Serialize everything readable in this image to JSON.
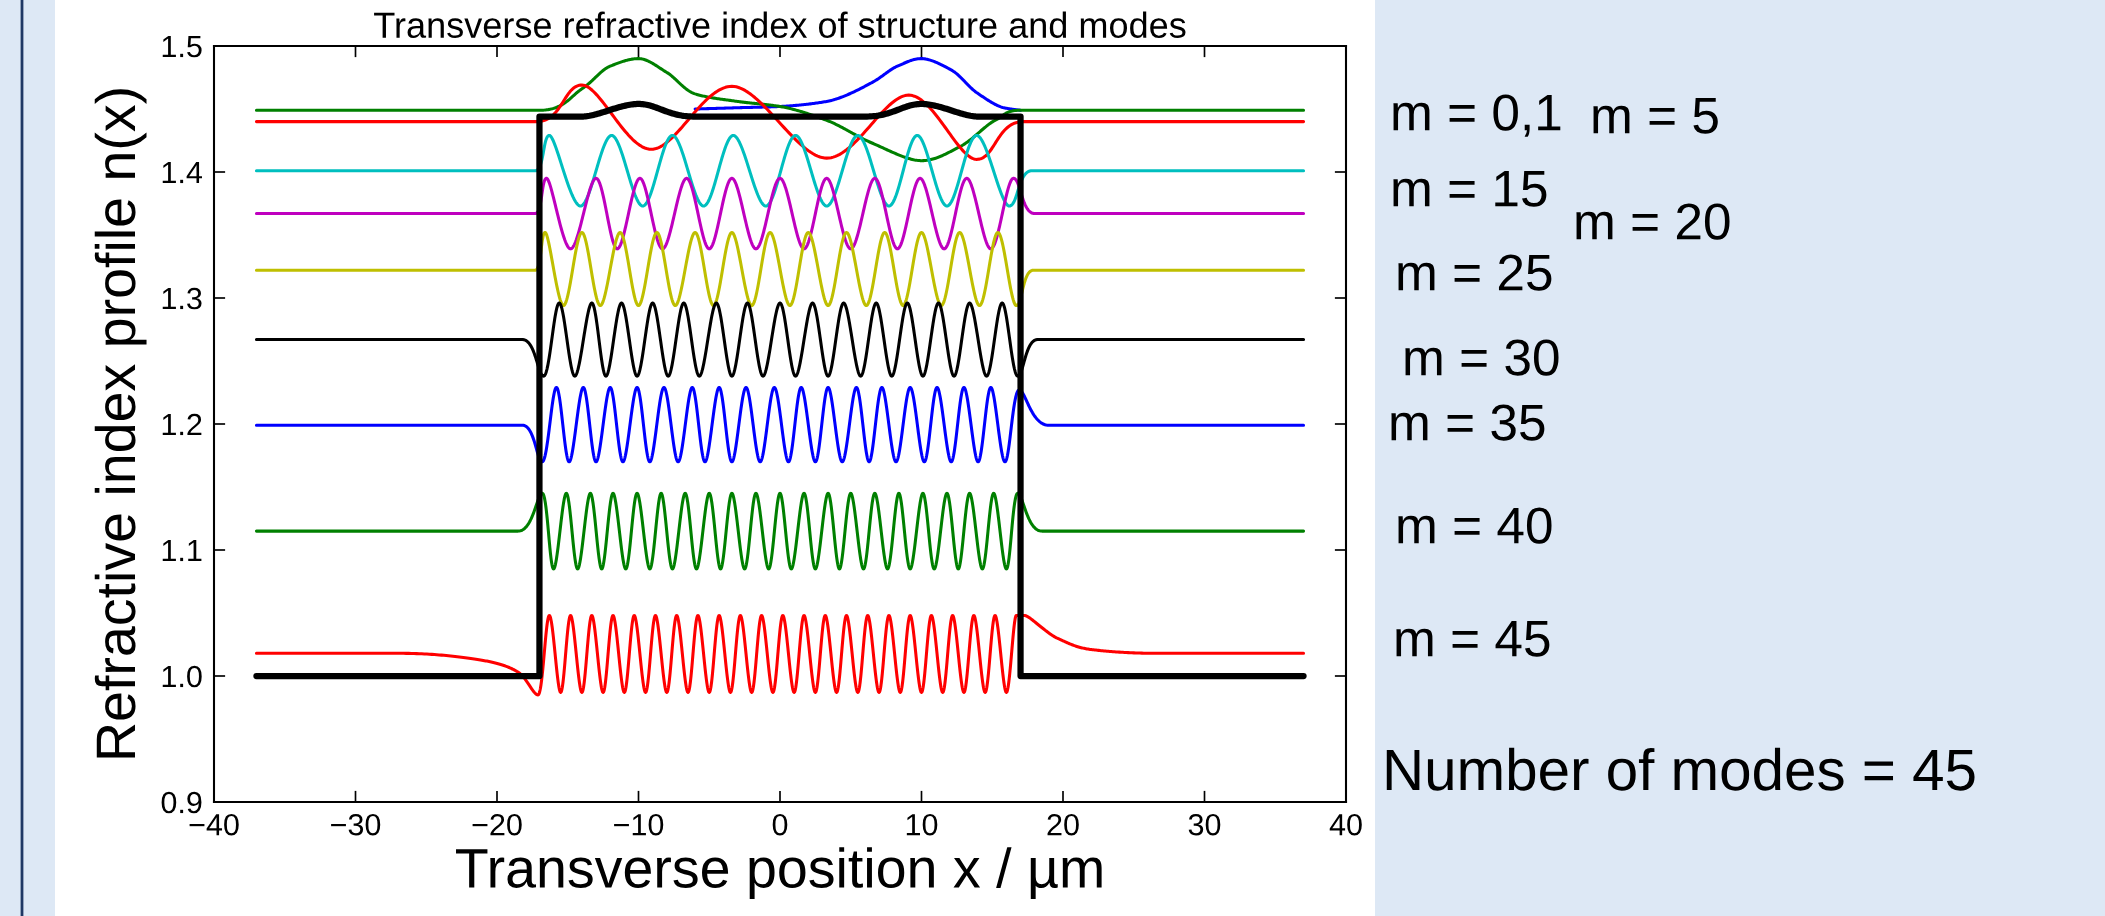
{
  "chart_data": {
    "type": "line",
    "title": "Transverse refractive index of structure and modes",
    "xlabel": "Transverse position x / µm",
    "ylabel": "Refractive index profile n(x)",
    "xlim": [
      -40,
      40
    ],
    "xticks": [
      {
        "value": -40,
        "label": "−40"
      },
      {
        "value": -30,
        "label": "−30"
      },
      {
        "value": -20,
        "label": "−20"
      },
      {
        "value": -10,
        "label": "−10"
      },
      0,
      10,
      20,
      30,
      40
    ],
    "ylim": [
      0.9,
      1.5
    ],
    "yticks": [
      0.9,
      {
        "value": 1.0,
        "label": "1.0"
      },
      1.1,
      1.2,
      1.3,
      1.4,
      1.5
    ],
    "annotations": [
      "m = 0,1",
      "m = 5",
      "m = 15",
      "m = 20",
      "m = 25",
      "m = 30",
      "m = 35",
      "m = 40",
      "m = 45",
      "Number of modes = 45"
    ],
    "series": [
      {
        "color": "#000000",
        "x": [
          -37,
          -17,
          -17,
          -14,
          -10,
          -6,
          6,
          10,
          14,
          17,
          17,
          37
        ],
        "values": [
          1.0,
          1.0,
          1.444,
          1.444,
          1.454,
          1.444,
          1.444,
          1.454,
          1.444,
          1.444,
          1.0,
          1.0
        ]
      },
      {
        "color": "#0000ff",
        "x": [
          -6,
          -3,
          0,
          3.3,
          6.5,
          8.3,
          10,
          12.1,
          13.9,
          15.8,
          17
        ],
        "values": [
          1.45,
          1.451,
          1.452,
          1.456,
          1.471,
          1.484,
          1.49,
          1.481,
          1.463,
          1.451,
          1.449
        ]
      },
      {
        "color": "#008000",
        "x": [
          -37,
          -17,
          -14,
          -12,
          -10,
          -8,
          -6,
          -3,
          0,
          3.3,
          6.5,
          10,
          12.7,
          15.2,
          17,
          37
        ],
        "values": [
          1.449,
          1.449,
          1.466,
          1.484,
          1.49,
          1.479,
          1.462,
          1.456,
          1.452,
          1.441,
          1.423,
          1.409,
          1.42,
          1.441,
          1.449,
          1.449
        ]
      },
      {
        "color": "#ff0000",
        "x": [
          -37,
          -17.2,
          -14,
          -9.1,
          -3.4,
          3.3,
          9.1,
          13.9,
          17.2,
          37
        ],
        "values": [
          1.44,
          1.44,
          1.469,
          1.418,
          1.468,
          1.411,
          1.461,
          1.41,
          1.44,
          1.44
        ]
      },
      {
        "color": "#00bfbf",
        "x": [
          -37,
          -17.3,
          -16.3,
          -14.1,
          -11.9,
          -9.7,
          -7.6,
          -5.4,
          -3.3,
          -1.0,
          1.1,
          3.3,
          5.5,
          7.7,
          9.7,
          11.8,
          13.9,
          16.2,
          17.8,
          37
        ],
        "values": [
          1.401,
          1.401,
          1.429,
          1.373,
          1.429,
          1.373,
          1.429,
          1.373,
          1.429,
          1.373,
          1.429,
          1.373,
          1.429,
          1.373,
          1.429,
          1.373,
          1.429,
          1.373,
          1.401,
          1.401
        ]
      },
      {
        "color": "#bf00bf",
        "x": [
          -37,
          -17.3,
          -16.5,
          -14.8,
          -13.0,
          -11.5,
          -9.9,
          -8.3,
          -6.6,
          -5.0,
          -3.4,
          -1.7,
          0.0,
          1.7,
          3.3,
          5.0,
          6.7,
          8.3,
          9.9,
          11.6,
          13.2,
          14.9,
          16.5,
          18.0,
          37
        ],
        "values": [
          1.367,
          1.367,
          1.395,
          1.339,
          1.395,
          1.339,
          1.395,
          1.339,
          1.395,
          1.339,
          1.395,
          1.339,
          1.395,
          1.339,
          1.395,
          1.339,
          1.395,
          1.339,
          1.395,
          1.339,
          1.395,
          1.339,
          1.395,
          1.367,
          1.367
        ]
      },
      {
        "color": "#bfbf00",
        "x": [
          -37,
          -17.3,
          -16.6,
          -15.3,
          -14.0,
          -12.7,
          -11.3,
          -10.0,
          -8.7,
          -7.4,
          -6.0,
          -4.7,
          -3.4,
          -2.0,
          -0.7,
          0.7,
          2.0,
          3.4,
          4.7,
          6.1,
          7.4,
          8.7,
          10.0,
          11.4,
          12.7,
          14.1,
          15.4,
          16.7,
          17.9,
          37
        ],
        "values": [
          1.322,
          1.322,
          1.352,
          1.294,
          1.352,
          1.294,
          1.352,
          1.294,
          1.352,
          1.294,
          1.352,
          1.294,
          1.352,
          1.294,
          1.352,
          1.294,
          1.352,
          1.294,
          1.352,
          1.294,
          1.352,
          1.294,
          1.352,
          1.294,
          1.352,
          1.294,
          1.352,
          1.294,
          1.322,
          1.322
        ]
      },
      {
        "color": "#000000",
        "x": [
          -37,
          -18.2,
          -16.7,
          -15.6,
          -14.5,
          -13.3,
          -12.3,
          -11.2,
          -10.1,
          -9.0,
          -7.9,
          -6.8,
          -5.7,
          -4.5,
          -3.4,
          -2.3,
          -1.2,
          0.0,
          1.1,
          2.3,
          3.4,
          4.5,
          5.7,
          6.8,
          7.9,
          9.0,
          10.1,
          11.2,
          12.3,
          13.4,
          14.6,
          15.7,
          16.8,
          18.2,
          37
        ],
        "values": [
          1.267,
          1.267,
          1.238,
          1.296,
          1.238,
          1.296,
          1.238,
          1.296,
          1.238,
          1.296,
          1.238,
          1.296,
          1.238,
          1.296,
          1.238,
          1.296,
          1.238,
          1.296,
          1.238,
          1.296,
          1.238,
          1.296,
          1.238,
          1.296,
          1.238,
          1.296,
          1.238,
          1.296,
          1.238,
          1.296,
          1.238,
          1.296,
          1.238,
          1.267,
          1.267
        ]
      },
      {
        "color": "#0000ff",
        "x": [
          -37,
          -18.2,
          -16.8,
          -15.8,
          -14.9,
          -13.9,
          -13.0,
          -12.0,
          -11.1,
          -10.1,
          -9.2,
          -8.2,
          -7.2,
          -6.2,
          -5.3,
          -4.3,
          -3.4,
          -2.4,
          -1.4,
          -0.4,
          0.6,
          1.5,
          2.5,
          3.4,
          4.4,
          5.4,
          6.3,
          7.2,
          8.2,
          9.2,
          10.2,
          11.1,
          12.1,
          13.0,
          14.0,
          14.9,
          15.9,
          16.9,
          19.0,
          37
        ],
        "values": [
          1.199,
          1.199,
          1.17,
          1.229,
          1.17,
          1.229,
          1.17,
          1.229,
          1.17,
          1.229,
          1.17,
          1.229,
          1.17,
          1.229,
          1.17,
          1.229,
          1.17,
          1.229,
          1.17,
          1.229,
          1.17,
          1.229,
          1.17,
          1.229,
          1.17,
          1.229,
          1.17,
          1.229,
          1.17,
          1.229,
          1.17,
          1.229,
          1.17,
          1.229,
          1.17,
          1.229,
          1.17,
          1.227,
          1.199,
          1.199
        ]
      },
      {
        "color": "#008000",
        "x": [
          -37,
          -18.5,
          -16.8,
          -16.0,
          -15.1,
          -14.3,
          -13.4,
          -12.6,
          -11.8,
          -10.9,
          -10.1,
          -9.2,
          -8.4,
          -7.6,
          -6.7,
          -5.9,
          -5.0,
          -4.2,
          -3.4,
          -2.5,
          -1.7,
          -0.8,
          0,
          0.8,
          1.7,
          2.5,
          3.4,
          4.2,
          5.0,
          5.9,
          6.7,
          7.6,
          8.4,
          9.2,
          10.1,
          10.9,
          11.8,
          12.6,
          13.4,
          14.3,
          15.1,
          16.0,
          16.8,
          18.5,
          37
        ],
        "values": [
          1.115,
          1.115,
          1.145,
          1.085,
          1.145,
          1.085,
          1.145,
          1.085,
          1.145,
          1.085,
          1.145,
          1.085,
          1.145,
          1.085,
          1.145,
          1.085,
          1.145,
          1.085,
          1.145,
          1.085,
          1.145,
          1.085,
          1.145,
          1.085,
          1.145,
          1.085,
          1.145,
          1.085,
          1.145,
          1.085,
          1.145,
          1.085,
          1.145,
          1.085,
          1.145,
          1.085,
          1.145,
          1.085,
          1.145,
          1.085,
          1.145,
          1.085,
          1.145,
          1.115,
          1.115
        ]
      },
      {
        "color": "#ff0000",
        "x": [
          -37,
          -26.8,
          -20.8,
          -18.5,
          -17.1,
          -16.3,
          -15.5,
          -14.8,
          -14.0,
          -13.3,
          -12.5,
          -11.8,
          -11.0,
          -10.3,
          -9.5,
          -8.8,
          -8.0,
          -7.3,
          -6.5,
          -5.8,
          -5.0,
          -4.3,
          -3.5,
          -2.8,
          -2.0,
          -1.3,
          -0.5,
          0.2,
          1.0,
          1.7,
          2.5,
          3.2,
          4.0,
          4.7,
          5.5,
          6.2,
          7.0,
          7.7,
          8.5,
          9.2,
          10.0,
          10.7,
          11.5,
          12.2,
          13.0,
          13.7,
          14.5,
          15.2,
          16.0,
          16.7,
          17.3,
          19.6,
          22.0,
          26.8,
          37
        ],
        "values": [
          1.018,
          1.018,
          1.012,
          1.003,
          0.985,
          1.048,
          0.987,
          1.048,
          0.987,
          1.048,
          0.987,
          1.048,
          0.987,
          1.048,
          0.987,
          1.048,
          0.987,
          1.048,
          0.987,
          1.048,
          0.987,
          1.048,
          0.987,
          1.048,
          0.987,
          1.048,
          0.987,
          1.048,
          0.987,
          1.048,
          0.987,
          1.048,
          0.987,
          1.048,
          0.987,
          1.048,
          0.987,
          1.048,
          0.987,
          1.048,
          0.987,
          1.048,
          0.987,
          1.048,
          0.987,
          1.048,
          0.987,
          1.048,
          0.987,
          1.048,
          1.048,
          1.03,
          1.021,
          1.018,
          1.018
        ]
      }
    ]
  }
}
